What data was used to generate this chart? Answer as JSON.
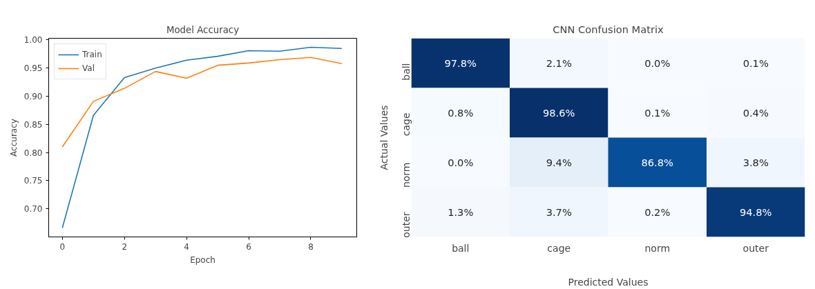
{
  "chart_data": [
    {
      "type": "line",
      "title": "Model Accuracy",
      "xlabel": "Epoch",
      "ylabel": "Accuracy",
      "x": [
        0,
        1,
        2,
        3,
        4,
        5,
        6,
        7,
        8,
        9
      ],
      "series": [
        {
          "name": "Train",
          "color": "#1f77b4",
          "values": [
            0.666,
            0.866,
            0.933,
            0.95,
            0.964,
            0.971,
            0.981,
            0.98,
            0.987,
            0.985
          ]
        },
        {
          "name": "Val",
          "color": "#ff7f0e",
          "values": [
            0.81,
            0.891,
            0.914,
            0.944,
            0.932,
            0.955,
            0.959,
            0.965,
            0.969,
            0.958
          ]
        }
      ],
      "xlim": [
        -0.44,
        9.48
      ],
      "ylim": [
        0.65,
        1.003
      ],
      "xticks": [
        0,
        2,
        4,
        6,
        8
      ],
      "yticks": [
        {
          "value": 0.7,
          "label": "0.70"
        },
        {
          "value": 0.75,
          "label": "0.75"
        },
        {
          "value": 0.8,
          "label": "0.80"
        },
        {
          "value": 0.85,
          "label": "0.85"
        },
        {
          "value": 0.9,
          "label": "0.90"
        },
        {
          "value": 0.95,
          "label": "0.95"
        },
        {
          "value": 1.0,
          "label": "1.00"
        }
      ],
      "legend": "top left",
      "grid": false
    },
    {
      "type": "heatmap",
      "title": "CNN Confusion Matrix",
      "xlabel": "Predicted Values",
      "ylabel": "Actual Values",
      "categories": [
        "ball",
        "cage",
        "norm",
        "outer"
      ],
      "y_categories": [
        "ball",
        "cage",
        "norm",
        "outer"
      ],
      "cells": [
        [
          97.8,
          2.1,
          0.0,
          0.1
        ],
        [
          0.8,
          98.6,
          0.1,
          0.4
        ],
        [
          0.0,
          9.4,
          86.8,
          3.8
        ],
        [
          1.3,
          3.7,
          0.2,
          94.8
        ]
      ],
      "cell_labels": [
        [
          "97.8%",
          "2.1%",
          "0.0%",
          "0.1%"
        ],
        [
          "0.8%",
          "98.6%",
          "0.1%",
          "0.4%"
        ],
        [
          "0.0%",
          "9.4%",
          "86.8%",
          "3.8%"
        ],
        [
          "1.3%",
          "3.7%",
          "0.2%",
          "94.8%"
        ]
      ]
    }
  ]
}
